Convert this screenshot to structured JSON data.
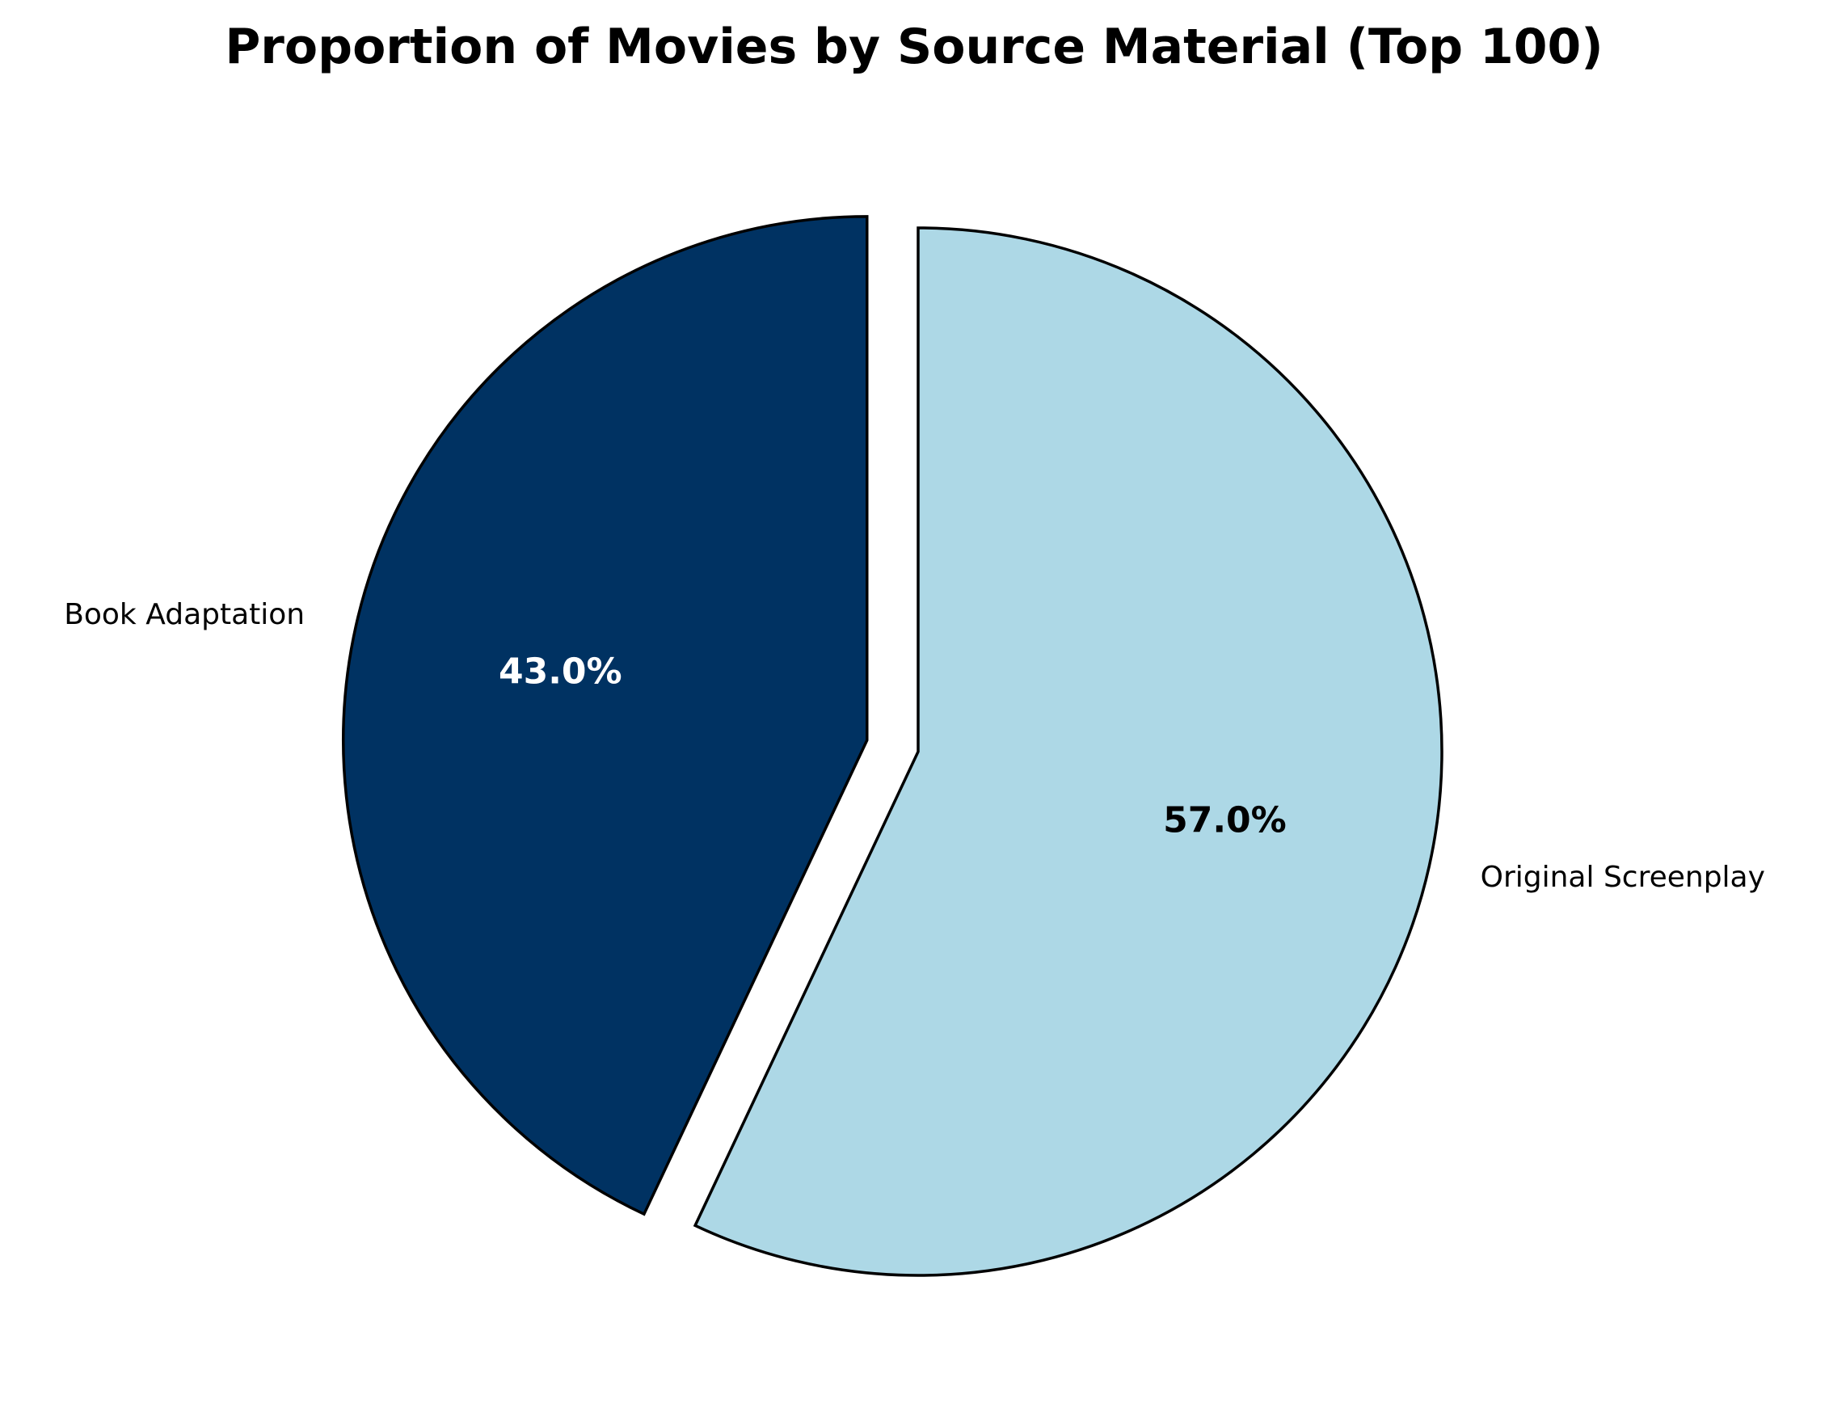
{
  "chart_data": {
    "type": "pie",
    "title": "Proportion of Movies by Source Material (Top 100)",
    "slices": [
      {
        "label": "Original Screenplay",
        "value": 57.0,
        "pct_label": "57.0%",
        "color": "#add8e6",
        "text_color": "#000000",
        "exploded": false
      },
      {
        "label": "Book Adaptation",
        "value": 43.0,
        "pct_label": "43.0%",
        "color": "#003262",
        "text_color": "#ffffff",
        "exploded": true
      }
    ],
    "start_angle_deg": 90,
    "direction": "clockwise",
    "edge_color": "#000000"
  }
}
